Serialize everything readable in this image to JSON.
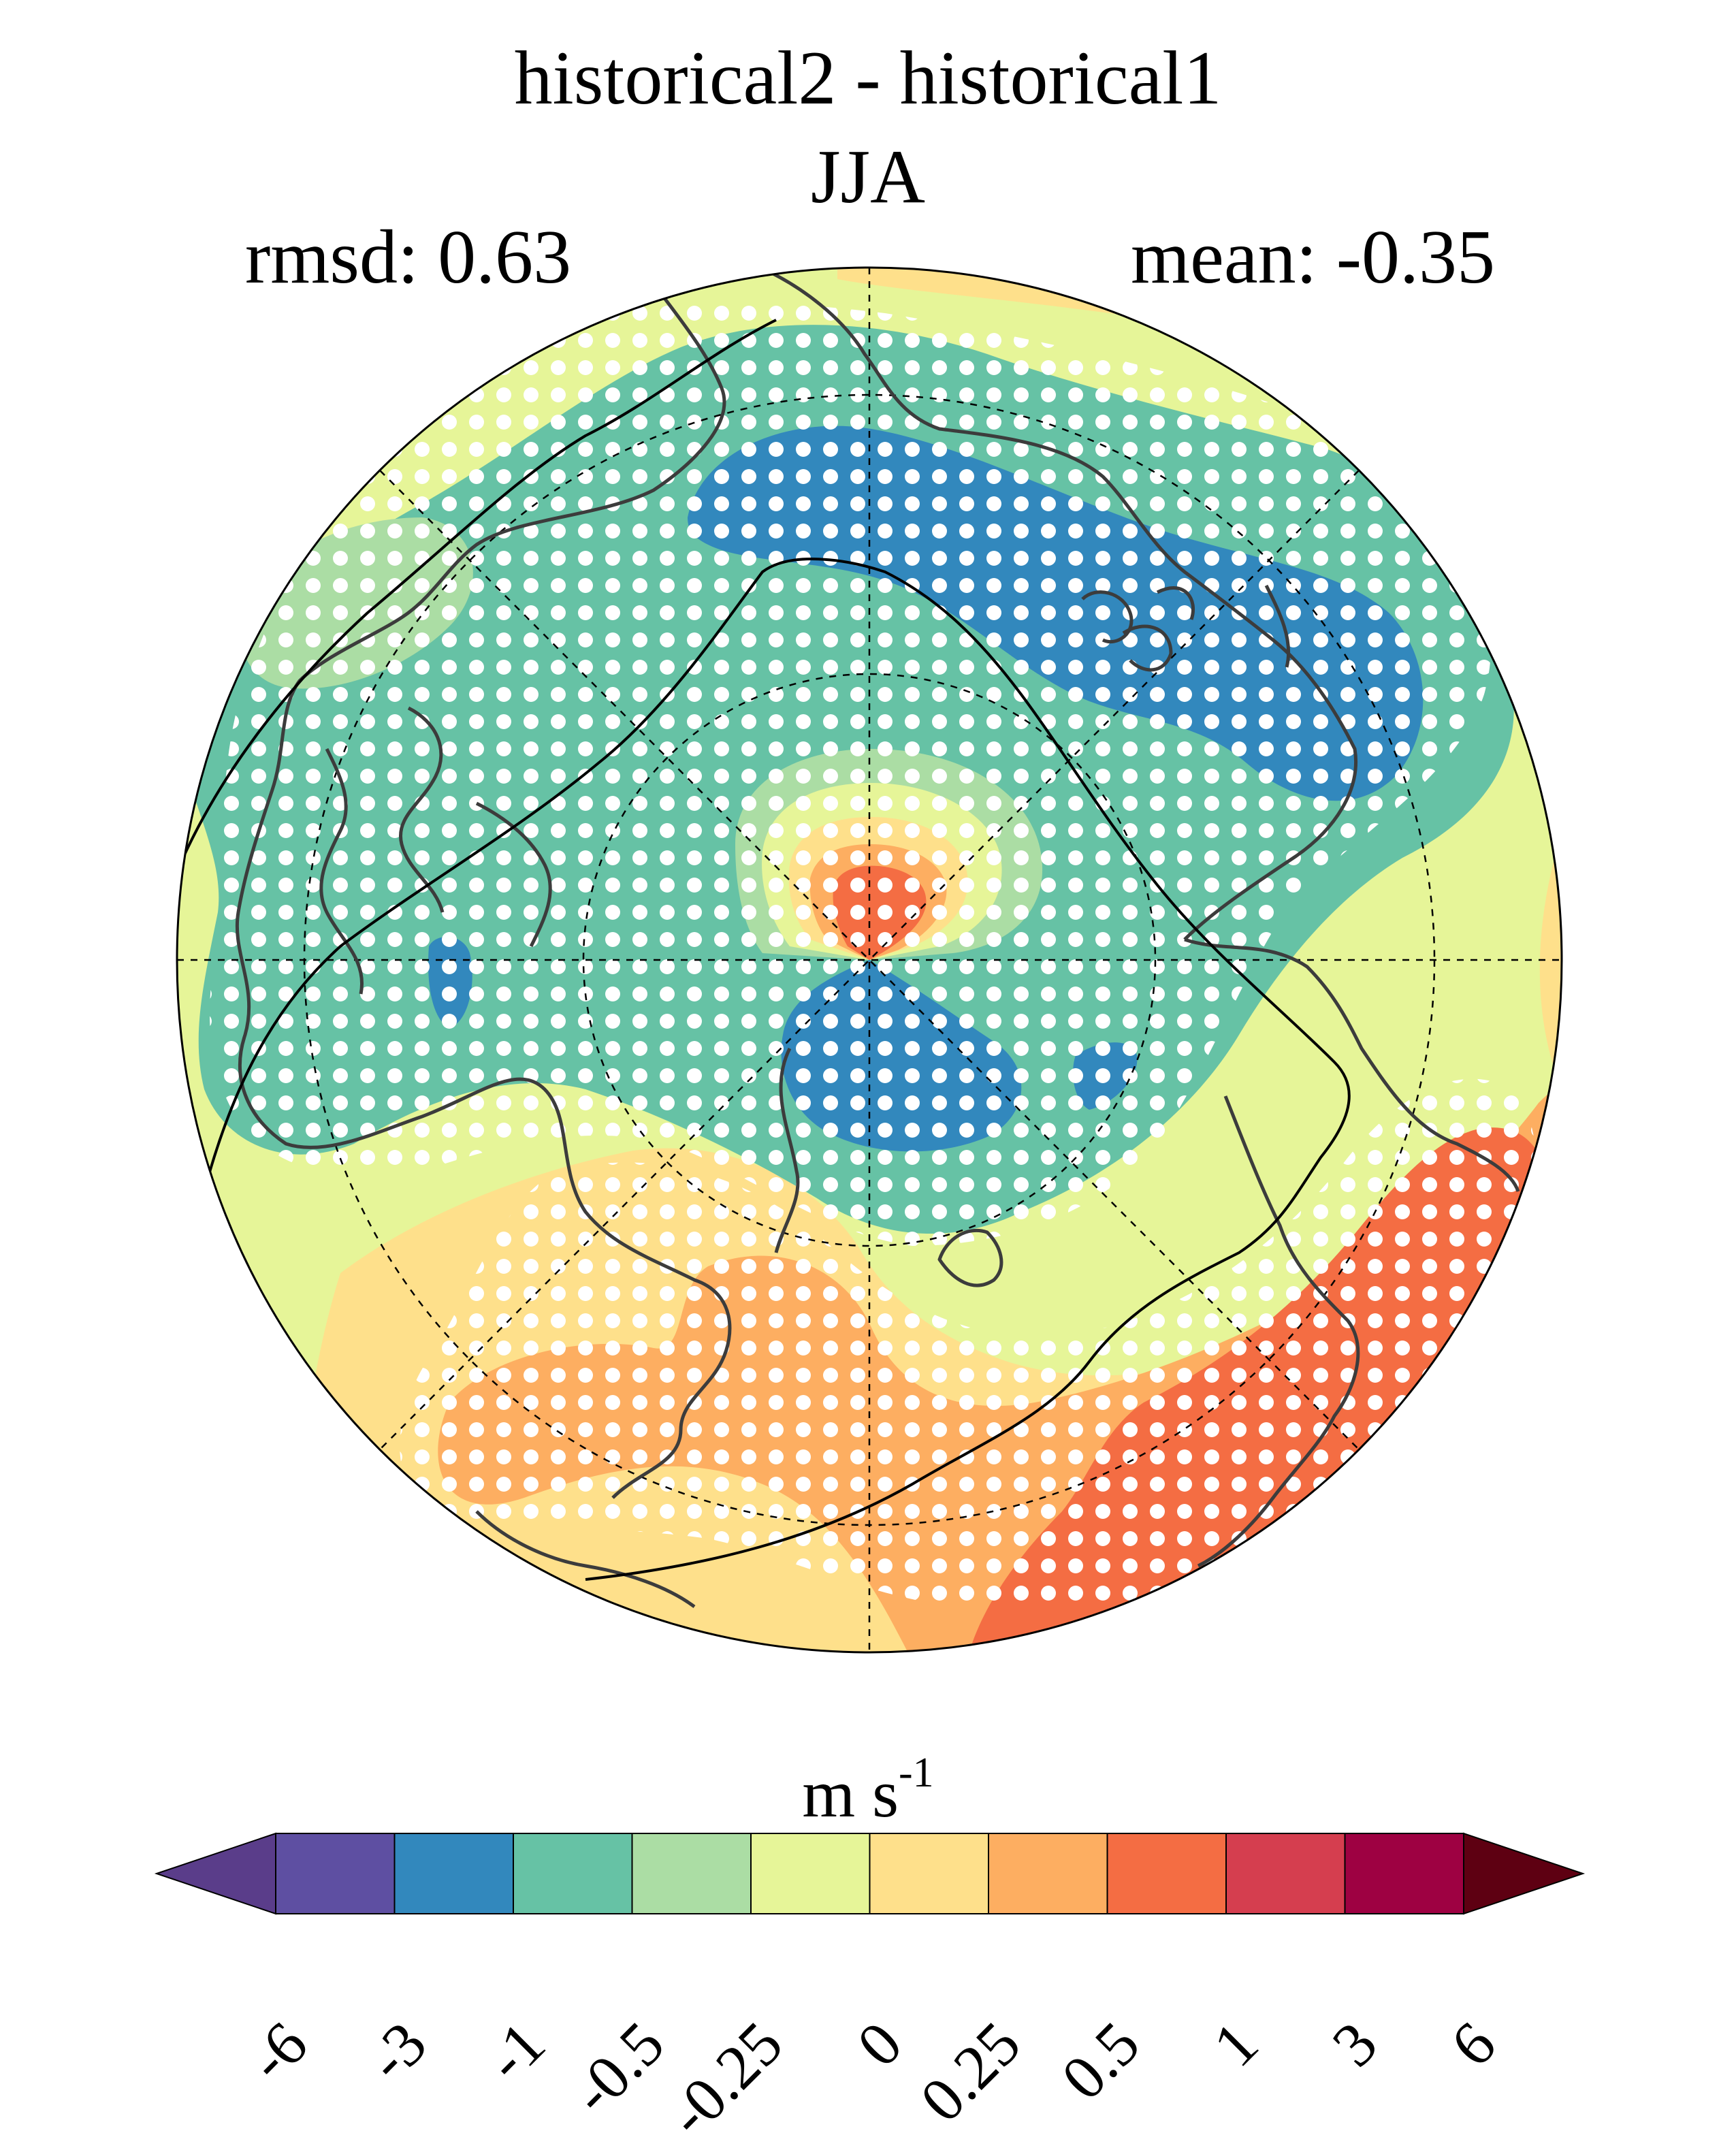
{
  "title": {
    "line1": "historical2 - historical1",
    "line2": "JJA"
  },
  "stats": {
    "rmsd": "rmsd: 0.63",
    "mean": "mean: -0.35"
  },
  "colorbar": {
    "units": "m s",
    "units_exponent": "-1",
    "labels": [
      "-6",
      "-3",
      "-1",
      "-0.5",
      "-0.25",
      "0",
      "0.25",
      "0.5",
      "1",
      "3",
      "6"
    ],
    "colors": [
      "#5e4fa2",
      "#3288bd",
      "#66c2a5",
      "#abdda4",
      "#e6f598",
      "#fee08b",
      "#fdae61",
      "#f46d43",
      "#d53e4f",
      "#9e0142"
    ],
    "under_color": "#5a3d8a",
    "over_color": "#5e0012"
  },
  "map": {
    "projection": "north-polar-stereographic",
    "stippling": "white-dots-significance",
    "colors": {
      "blue": "#3288bd",
      "teal": "#66c2a5",
      "lightgreen": "#abdda4",
      "yellowgreen": "#e6f598",
      "yellow": "#fee08b",
      "orange": "#fdae61",
      "redorange": "#f46d43",
      "coast": "#3c3c3c"
    }
  }
}
